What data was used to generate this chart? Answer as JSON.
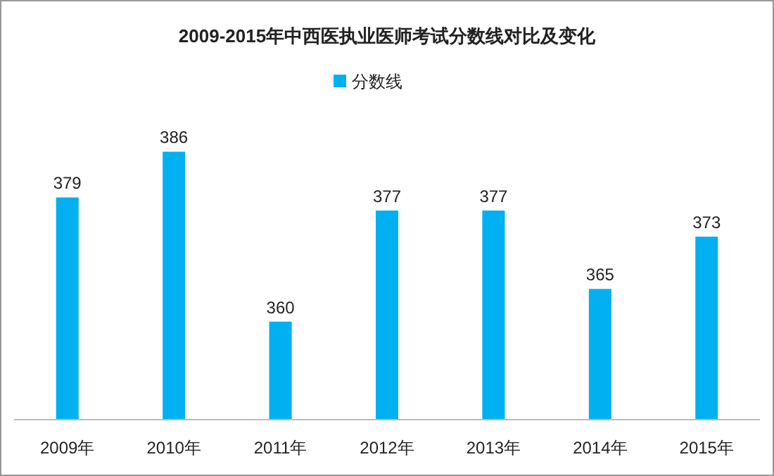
{
  "chart_data": {
    "type": "bar",
    "title": "2009-2015年中西医执业医师考试分数线对比及变化",
    "categories": [
      "2009年",
      "2010年",
      "2011年",
      "2012年",
      "2013年",
      "2014年",
      "2015年"
    ],
    "series": [
      {
        "name": "分数线",
        "color": "#00b0f0",
        "values": [
          379,
          386,
          360,
          377,
          377,
          365,
          373
        ]
      }
    ],
    "ylim": [
      345,
      409
    ],
    "data_labels": true,
    "legend": "top",
    "grid": false
  }
}
